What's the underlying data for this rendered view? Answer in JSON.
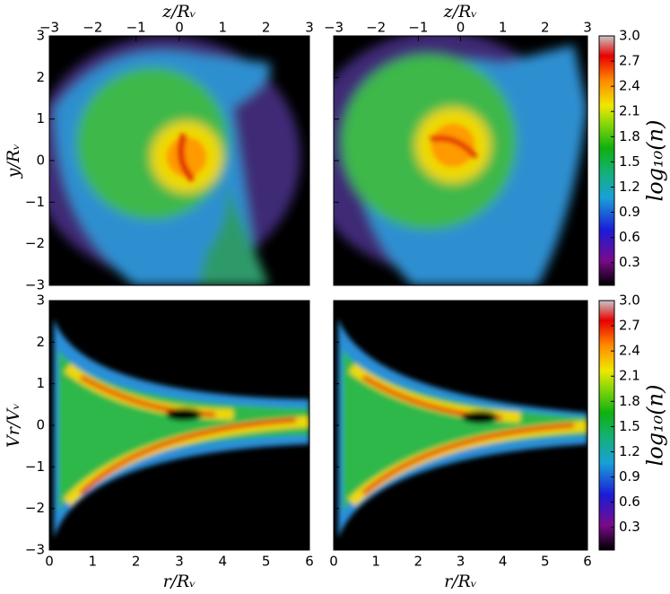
{
  "chart_data": [
    {
      "type": "heatmap",
      "xlabel": "z/Rᵥ",
      "ylabel": "y/Rᵥ",
      "xlim": [
        -3,
        3
      ],
      "ylim": [
        -3,
        3
      ],
      "xticks": [
        {
          "value": -3,
          "label": "−3"
        },
        {
          "value": -2,
          "label": "−2"
        },
        {
          "value": -1,
          "label": "−1"
        },
        0,
        1,
        2,
        3
      ],
      "yticks": [
        {
          "value": -3,
          "label": "−3"
        },
        {
          "value": -2,
          "label": "−2"
        },
        {
          "value": -1,
          "label": "−1"
        },
        0,
        1,
        2,
        3
      ],
      "xaxis_position": "top",
      "ytick_labels": true
    },
    {
      "type": "heatmap",
      "xlabel": "z/Rᵥ",
      "xlim": [
        -3,
        3
      ],
      "ylim": [
        -3,
        3
      ],
      "xticks": [
        {
          "value": -3,
          "label": "−3"
        },
        {
          "value": -2,
          "label": "−2"
        },
        {
          "value": -1,
          "label": "−1"
        },
        0,
        1,
        2,
        3
      ],
      "yticks": [
        -3,
        -2,
        -1,
        0,
        1,
        2,
        3
      ],
      "xaxis_position": "top",
      "ytick_labels": false,
      "colorbar": {
        "label": "log₁₀(n)",
        "lim": [
          0.03,
          3.0
        ],
        "ticks": [
          0.3,
          0.6,
          0.9,
          1.2,
          1.5,
          1.8,
          2.1,
          2.4,
          2.7,
          {
            "value": 3,
            "label": "3.0"
          }
        ]
      }
    },
    {
      "type": "heatmap",
      "xlabel": "r/Rᵥ",
      "ylabel": "Vr/Vᵥ",
      "xlim": [
        0,
        6
      ],
      "ylim": [
        -3,
        3
      ],
      "xticks": [
        0,
        1,
        2,
        3,
        4,
        5,
        6
      ],
      "yticks": [
        {
          "value": -3,
          "label": "−3"
        },
        {
          "value": -2,
          "label": "−2"
        },
        {
          "value": -1,
          "label": "−1"
        },
        0,
        1,
        2,
        3
      ],
      "xaxis_position": "bottom",
      "ytick_labels": true
    },
    {
      "type": "heatmap",
      "xlabel": "r/Rᵥ",
      "xlim": [
        0,
        6
      ],
      "ylim": [
        -3,
        3
      ],
      "xticks": [
        0,
        1,
        2,
        3,
        4,
        5,
        6
      ],
      "yticks": [
        -3,
        -2,
        -1,
        0,
        1,
        2,
        3
      ],
      "xaxis_position": "bottom",
      "ytick_labels": false,
      "colorbar": {
        "label": "log₁₀(n)",
        "lim": [
          0.03,
          3.0
        ],
        "ticks": [
          0.3,
          0.6,
          0.9,
          1.2,
          1.5,
          1.8,
          2.1,
          2.4,
          2.7,
          {
            "value": 3,
            "label": "3.0"
          }
        ]
      }
    }
  ]
}
